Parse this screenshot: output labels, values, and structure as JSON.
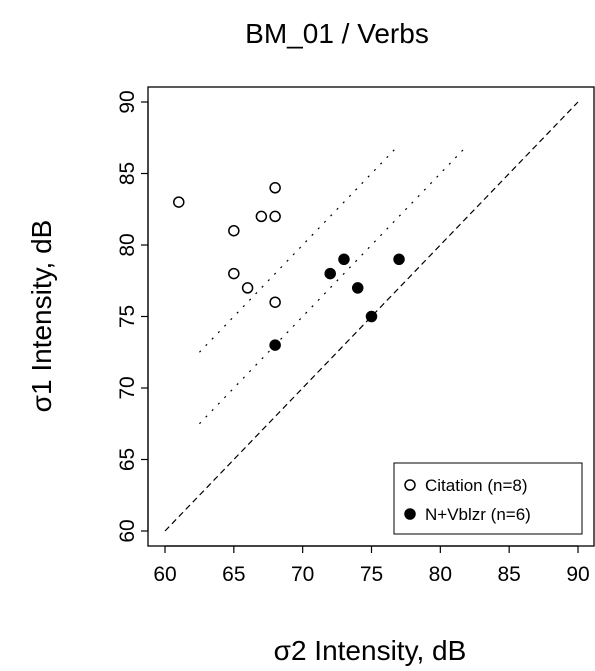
{
  "chart_data": {
    "type": "scatter",
    "title": "BM_01  /  Verbs",
    "xlabel": "σ2  Intensity,  dB",
    "ylabel": "σ1  Intensity,  dB",
    "xlim": [
      60,
      90
    ],
    "ylim": [
      60,
      90
    ],
    "x_ticks": [
      "60",
      "65",
      "70",
      "75",
      "80",
      "85",
      "90"
    ],
    "y_ticks": [
      "60",
      "65",
      "70",
      "75",
      "80",
      "85",
      "90"
    ],
    "legend_position": "bottom-right",
    "series": [
      {
        "name": "Citation  (n=8)",
        "marker": "open-circle",
        "color": "#000000",
        "points": [
          {
            "x": 61,
            "y": 83
          },
          {
            "x": 65,
            "y": 81
          },
          {
            "x": 65,
            "y": 78
          },
          {
            "x": 66,
            "y": 77
          },
          {
            "x": 67,
            "y": 82
          },
          {
            "x": 68,
            "y": 84
          },
          {
            "x": 68,
            "y": 82
          },
          {
            "x": 68,
            "y": 76
          }
        ]
      },
      {
        "name": "N+Vblzr  (n=6)",
        "marker": "filled-circle",
        "color": "#000000",
        "points": [
          {
            "x": 68,
            "y": 73
          },
          {
            "x": 72,
            "y": 78
          },
          {
            "x": 73,
            "y": 79
          },
          {
            "x": 74,
            "y": 77
          },
          {
            "x": 75,
            "y": 75
          },
          {
            "x": 77,
            "y": 79
          }
        ]
      }
    ],
    "reference_lines": [
      {
        "style": "dashed",
        "x": [
          60,
          90
        ],
        "y": [
          60,
          90
        ]
      },
      {
        "style": "dotted",
        "x": [
          62.5,
          82
        ],
        "y": [
          67.5,
          87
        ]
      },
      {
        "style": "dotted",
        "x": [
          62.5,
          77
        ],
        "y": [
          72.5,
          87
        ]
      }
    ]
  }
}
